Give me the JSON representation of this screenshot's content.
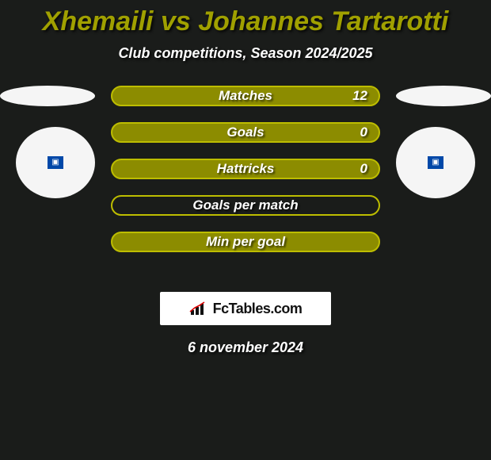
{
  "colors": {
    "background": "#1a1c1a",
    "accent": "#a0a000",
    "bar_fill": "#8c8c00",
    "bar_border": "#bdbd00",
    "text": "#ffffff",
    "ellipse": "#f5f5f5",
    "logo_bg": "#ffffff"
  },
  "typography": {
    "title_size": 34,
    "subtitle_size": 18,
    "bar_label_size": 17,
    "date_size": 18
  },
  "title": "Xhemaili vs Johannes Tartarotti",
  "subtitle": "Club competitions, Season 2024/2025",
  "bars": [
    {
      "label": "Matches",
      "left": "",
      "right": "12",
      "fill_pct": 100
    },
    {
      "label": "Goals",
      "left": "",
      "right": "0",
      "fill_pct": 100
    },
    {
      "label": "Hattricks",
      "left": "",
      "right": "0",
      "fill_pct": 100
    },
    {
      "label": "Goals per match",
      "left": "",
      "right": "",
      "fill_pct": 0
    },
    {
      "label": "Min per goal",
      "left": "",
      "right": "",
      "fill_pct": 100
    }
  ],
  "logo_text": "FcTables.com",
  "date": "6 november 2024"
}
